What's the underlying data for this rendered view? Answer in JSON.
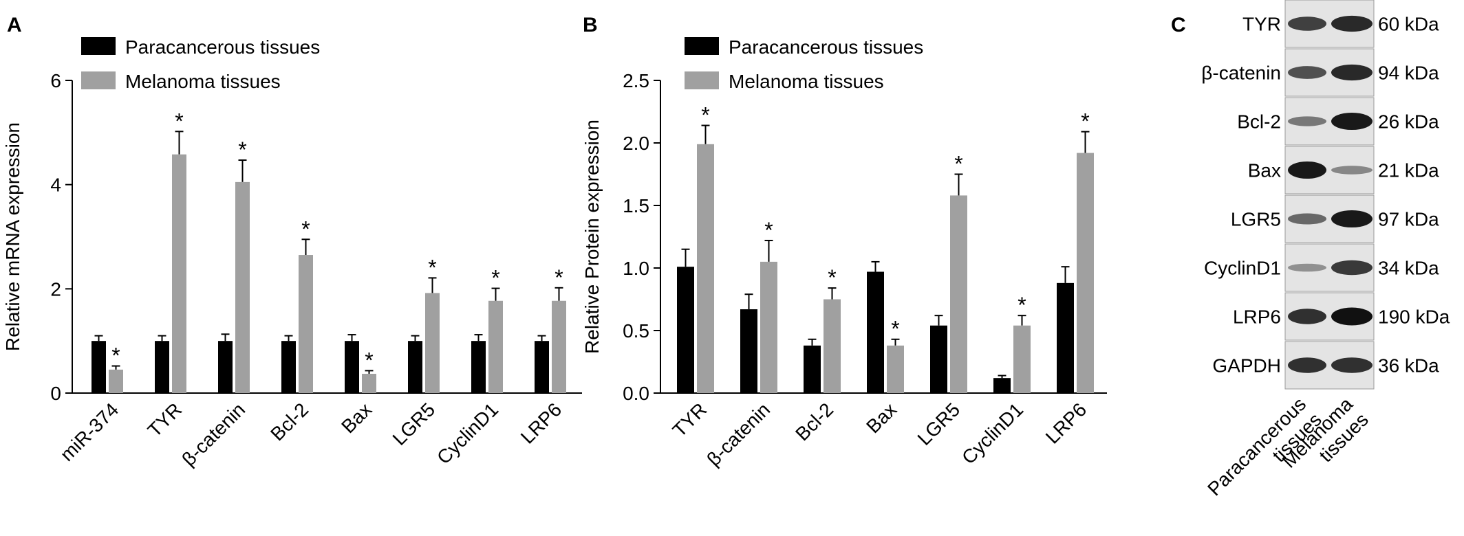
{
  "chart_data": [
    {
      "panel": "A",
      "type": "bar",
      "ylabel": "Relative mRNA expression",
      "categories": [
        "miR-374",
        "TYR",
        "β-catenin",
        "Bcl-2",
        "Bax",
        "LGR5",
        "CyclinD1",
        "LRP6"
      ],
      "ylim": [
        0,
        6
      ],
      "yticks": [
        "0",
        "2",
        "4",
        "6"
      ],
      "legend": "top-left",
      "grid": false,
      "series": [
        {
          "name": "Paracancerous tissues",
          "color": "#000000",
          "values": [
            1.0,
            1.0,
            1.0,
            1.0,
            1.0,
            1.0,
            1.0,
            1.0
          ],
          "errors": [
            0.1,
            0.1,
            0.13,
            0.1,
            0.12,
            0.1,
            0.12,
            0.1
          ]
        },
        {
          "name": "Melanoma tissues",
          "color": "#a0a0a0",
          "values": [
            0.45,
            4.58,
            4.05,
            2.65,
            0.37,
            1.92,
            1.77,
            1.77
          ],
          "errors": [
            0.07,
            0.44,
            0.42,
            0.3,
            0.06,
            0.29,
            0.24,
            0.25
          ],
          "markers": [
            "*",
            "*",
            "*",
            "*",
            "*",
            "*",
            "*",
            "*"
          ]
        }
      ]
    },
    {
      "panel": "B",
      "type": "bar",
      "ylabel": "Relative Protein expression",
      "categories": [
        "TYR",
        "β-catenin",
        "Bcl-2",
        "Bax",
        "LGR5",
        "CyclinD1",
        "LRP6"
      ],
      "ylim": [
        0,
        2.5
      ],
      "yticks": [
        "0.0",
        "0.5",
        "1.0",
        "1.5",
        "2.0",
        "2.5"
      ],
      "legend": "top-left",
      "grid": false,
      "series": [
        {
          "name": "Paracancerous tissues",
          "color": "#000000",
          "values": [
            1.01,
            0.67,
            0.38,
            0.97,
            0.54,
            0.12,
            0.88
          ],
          "errors": [
            0.14,
            0.12,
            0.05,
            0.08,
            0.08,
            0.02,
            0.13
          ]
        },
        {
          "name": "Melanoma tissues",
          "color": "#a0a0a0",
          "values": [
            1.99,
            1.05,
            0.75,
            0.38,
            1.58,
            0.54,
            1.92
          ],
          "errors": [
            0.15,
            0.17,
            0.09,
            0.05,
            0.17,
            0.08,
            0.17
          ],
          "markers": [
            "*",
            "*",
            "*",
            "*",
            "*",
            "*",
            "*"
          ]
        }
      ]
    }
  ],
  "panels": {
    "a": "A",
    "b": "B",
    "c": "C"
  },
  "blot": {
    "rows": [
      {
        "protein": "TYR",
        "size": "60 kDa",
        "para": 0.7,
        "mel": 0.85
      },
      {
        "protein": "β-catenin",
        "size": "94 kDa",
        "para": 0.6,
        "mel": 0.85
      },
      {
        "protein": "Bcl-2",
        "size": "26 kDa",
        "para": 0.35,
        "mel": 0.95
      },
      {
        "protein": "Bax",
        "size": "21 kDa",
        "para": 0.95,
        "mel": 0.25
      },
      {
        "protein": "LGR5",
        "size": "97 kDa",
        "para": 0.45,
        "mel": 0.95
      },
      {
        "protein": "CyclinD1",
        "size": "34 kDa",
        "para": 0.2,
        "mel": 0.75
      },
      {
        "protein": "LRP6",
        "size": "190 kDa",
        "para": 0.8,
        "mel": 1.0
      },
      {
        "protein": "GAPDH",
        "size": "36 kDa",
        "para": 0.8,
        "mel": 0.8
      }
    ],
    "lanes": [
      [
        "Paracancerous",
        "tissues"
      ],
      [
        "Melanoma",
        "tissues"
      ]
    ]
  }
}
